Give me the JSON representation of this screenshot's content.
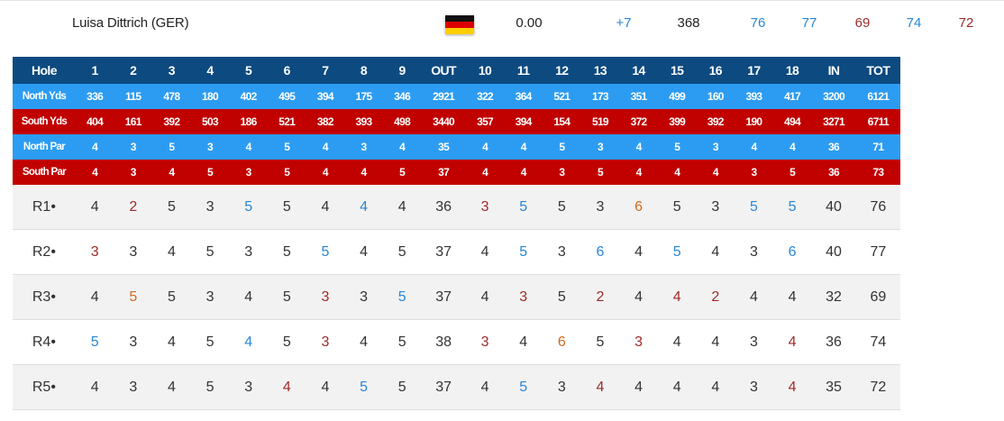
{
  "colors": {
    "header_bg": "#0d4a80",
    "north_bg": "#2c9cf2",
    "south_bg": "#c10000",
    "birdie": "#2a86d6",
    "bogey": "#9e2a2a",
    "double_bogey": "#d2691e"
  },
  "player": {
    "name": "Luisa Dittrich (GER)",
    "flag_icon": "germany-flag-icon",
    "money": "0.00",
    "to_par": "+7",
    "total": "368",
    "r1": "76",
    "r2": "77",
    "r3": "69",
    "r4": "74",
    "r5": "72",
    "round_score_colors": [
      "#2a86d6",
      "#2a86d6",
      "#9e2a2a",
      "#2a86d6",
      "#9e2a2a"
    ]
  },
  "scorecard": {
    "header": [
      "Hole",
      "1",
      "2",
      "3",
      "4",
      "5",
      "6",
      "7",
      "8",
      "9",
      "OUT",
      "10",
      "11",
      "12",
      "13",
      "14",
      "15",
      "16",
      "17",
      "18",
      "IN",
      "TOT"
    ],
    "info_rows": [
      {
        "style": "blue",
        "label": "North Yds",
        "values": [
          "336",
          "115",
          "478",
          "180",
          "402",
          "495",
          "394",
          "175",
          "346",
          "2921",
          "322",
          "364",
          "521",
          "173",
          "351",
          "499",
          "160",
          "393",
          "417",
          "3200",
          "6121"
        ]
      },
      {
        "style": "red",
        "label": "South Yds",
        "values": [
          "404",
          "161",
          "392",
          "503",
          "186",
          "521",
          "382",
          "393",
          "498",
          "3440",
          "357",
          "394",
          "154",
          "519",
          "372",
          "399",
          "392",
          "190",
          "494",
          "3271",
          "6711"
        ]
      },
      {
        "style": "blue",
        "label": "North Par",
        "values": [
          "4",
          "3",
          "5",
          "3",
          "4",
          "5",
          "4",
          "3",
          "4",
          "35",
          "4",
          "4",
          "5",
          "3",
          "4",
          "5",
          "3",
          "4",
          "4",
          "36",
          "71"
        ]
      },
      {
        "style": "red",
        "label": "South Par",
        "values": [
          "4",
          "3",
          "4",
          "5",
          "3",
          "5",
          "4",
          "4",
          "5",
          "37",
          "4",
          "4",
          "3",
          "5",
          "4",
          "4",
          "4",
          "3",
          "5",
          "36",
          "73"
        ]
      }
    ],
    "rounds": [
      {
        "label": "R1•",
        "scores": [
          "4",
          "2",
          "5",
          "3",
          "5",
          "5",
          "4",
          "4",
          "4",
          "36",
          "3",
          "5",
          "5",
          "3",
          "6",
          "5",
          "3",
          "5",
          "5",
          "40",
          "76"
        ],
        "marks": [
          "p",
          "b",
          "p",
          "p",
          "d",
          "p",
          "p",
          "d",
          "p",
          "p",
          "b",
          "d",
          "p",
          "p",
          "o",
          "p",
          "p",
          "d",
          "d",
          "p",
          "p"
        ]
      },
      {
        "label": "R2•",
        "scores": [
          "3",
          "3",
          "4",
          "5",
          "3",
          "5",
          "5",
          "4",
          "5",
          "37",
          "4",
          "5",
          "3",
          "6",
          "4",
          "5",
          "4",
          "3",
          "6",
          "40",
          "77"
        ],
        "marks": [
          "b",
          "p",
          "p",
          "p",
          "p",
          "p",
          "d",
          "p",
          "p",
          "p",
          "p",
          "d",
          "p",
          "d",
          "p",
          "d",
          "p",
          "p",
          "d",
          "p",
          "p"
        ]
      },
      {
        "label": "R3•",
        "scores": [
          "4",
          "5",
          "5",
          "3",
          "4",
          "5",
          "3",
          "3",
          "5",
          "37",
          "4",
          "3",
          "5",
          "2",
          "4",
          "4",
          "2",
          "4",
          "4",
          "32",
          "69"
        ],
        "marks": [
          "p",
          "o",
          "p",
          "p",
          "p",
          "p",
          "b",
          "p",
          "d",
          "p",
          "p",
          "b",
          "p",
          "b",
          "p",
          "b",
          "b",
          "p",
          "p",
          "p",
          "p"
        ]
      },
      {
        "label": "R4•",
        "scores": [
          "5",
          "3",
          "4",
          "5",
          "4",
          "5",
          "3",
          "4",
          "5",
          "38",
          "3",
          "4",
          "6",
          "5",
          "3",
          "4",
          "4",
          "3",
          "4",
          "36",
          "74"
        ],
        "marks": [
          "d",
          "p",
          "p",
          "p",
          "d",
          "p",
          "b",
          "p",
          "p",
          "p",
          "b",
          "p",
          "o",
          "p",
          "b",
          "p",
          "p",
          "p",
          "b",
          "p",
          "p"
        ]
      },
      {
        "label": "R5•",
        "scores": [
          "4",
          "3",
          "4",
          "5",
          "3",
          "4",
          "4",
          "5",
          "5",
          "37",
          "4",
          "5",
          "3",
          "4",
          "4",
          "4",
          "4",
          "3",
          "4",
          "35",
          "72"
        ],
        "marks": [
          "p",
          "p",
          "p",
          "p",
          "p",
          "b",
          "p",
          "d",
          "p",
          "p",
          "p",
          "d",
          "p",
          "b",
          "p",
          "p",
          "p",
          "p",
          "b",
          "p",
          "p"
        ]
      }
    ]
  }
}
